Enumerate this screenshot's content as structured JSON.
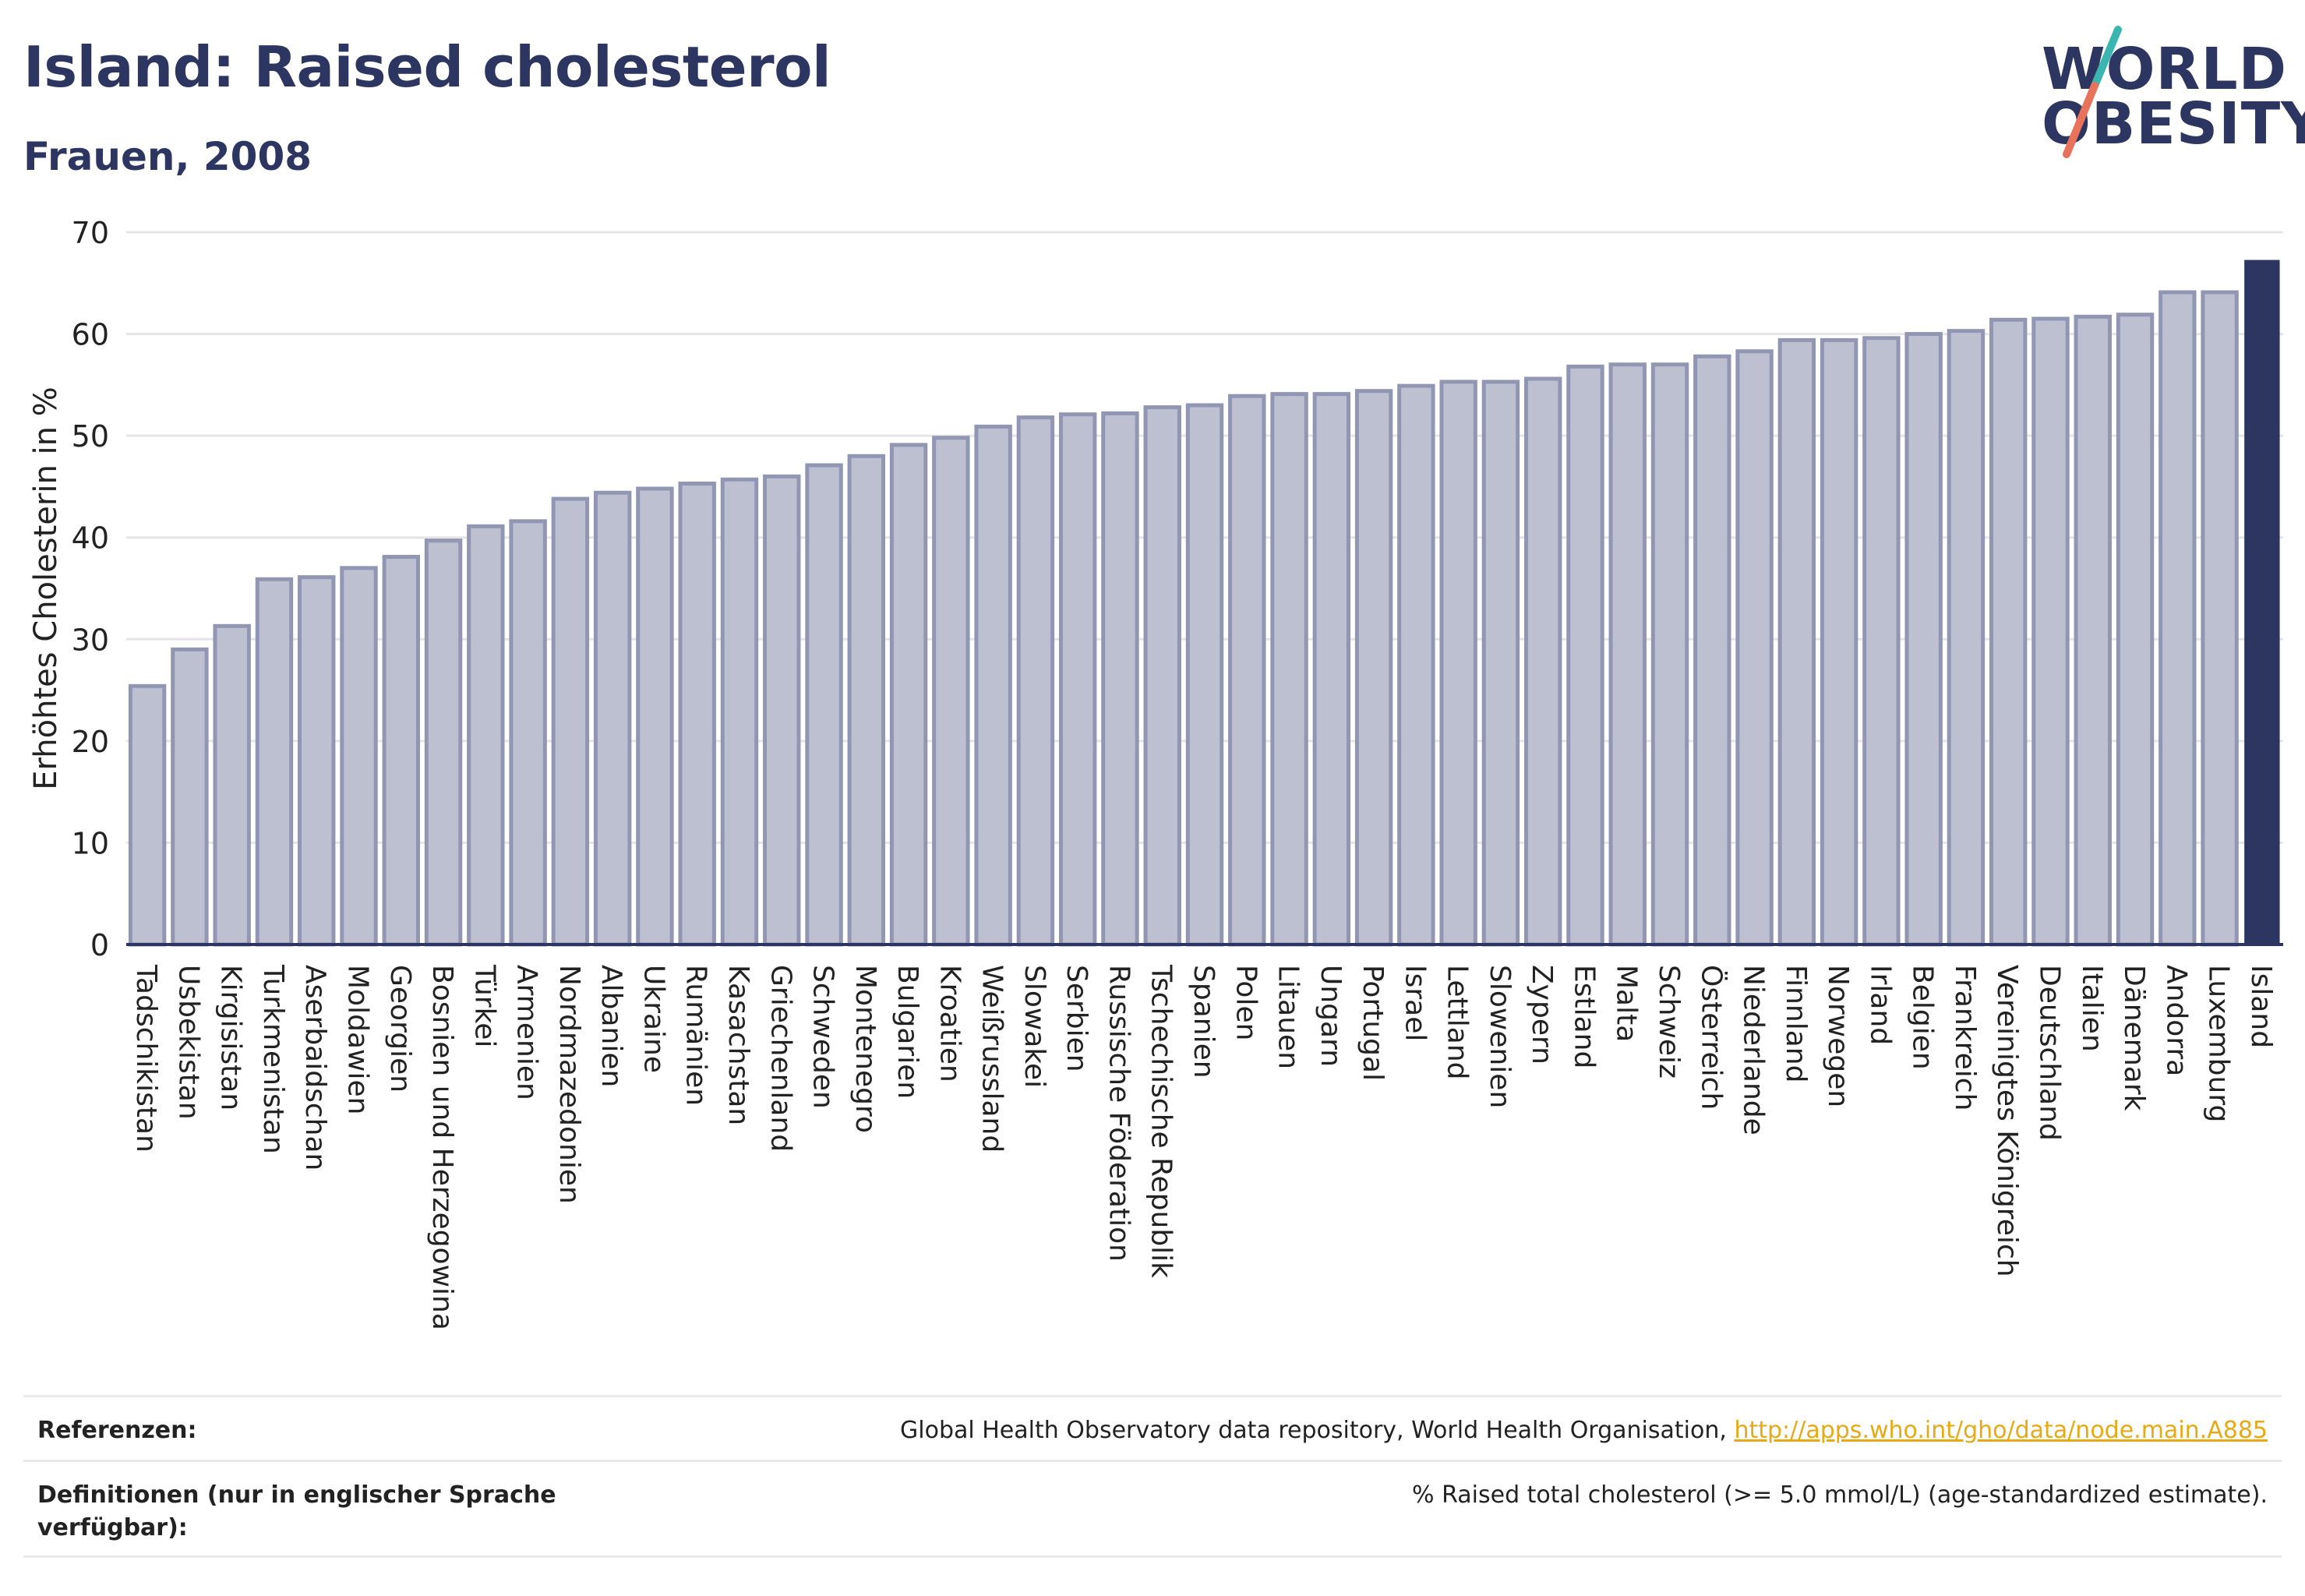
{
  "header": {
    "title": "Island: Raised cholesterol",
    "subtitle": "Frauen, 2008"
  },
  "logo": {
    "line1": "WORLD",
    "line2": "OBESITY",
    "colors": {
      "text": "#2d3561",
      "slash_top": "#3ab5b0",
      "slash_bottom": "#e8735a"
    }
  },
  "chart_data": {
    "type": "bar",
    "ylabel": "Erhöhtes Cholesterin in %",
    "xlabel": "",
    "ylim": [
      0,
      70
    ],
    "yticks": [
      0,
      10,
      20,
      30,
      40,
      50,
      60,
      70
    ],
    "grid": true,
    "highlight": "Island",
    "colors": {
      "bar": "#bdc0d0",
      "bar_stroke": "#9196b2",
      "highlight": "#2d3561",
      "axis": "#2d3561",
      "grid": "#e5e5e5"
    },
    "categories": [
      "Tadschikistan",
      "Usbekistan",
      "Kirgisistan",
      "Turkmenistan",
      "Aserbaidschan",
      "Moldawien",
      "Georgien",
      "Bosnien und Herzegowina",
      "Türkei",
      "Armenien",
      "Nordmazedonien",
      "Albanien",
      "Ukraine",
      "Rumänien",
      "Kasachstan",
      "Griechenland",
      "Schweden",
      "Montenegro",
      "Bulgarien",
      "Kroatien",
      "Weißrussland",
      "Slowakei",
      "Serbien",
      "Russische Föderation",
      "Tschechische Republik",
      "Spanien",
      "Polen",
      "Litauen",
      "Ungarn",
      "Portugal",
      "Israel",
      "Lettland",
      "Slowenien",
      "Zypern",
      "Estland",
      "Malta",
      "Schweiz",
      "Österreich",
      "Niederlande",
      "Finnland",
      "Norwegen",
      "Irland",
      "Belgien",
      "Frankreich",
      "Vereinigtes Königreich",
      "Deutschland",
      "Italien",
      "Dänemark",
      "Andorra",
      "Luxemburg",
      "Island"
    ],
    "values": [
      25.4,
      29.0,
      31.3,
      35.9,
      36.1,
      37.0,
      38.1,
      39.7,
      41.1,
      41.6,
      43.8,
      44.4,
      44.8,
      45.3,
      45.7,
      46.0,
      47.1,
      48.0,
      49.1,
      49.8,
      50.9,
      51.8,
      52.1,
      52.2,
      52.8,
      53.0,
      53.9,
      54.1,
      54.1,
      54.4,
      54.9,
      55.3,
      55.3,
      55.6,
      56.8,
      57.0,
      57.0,
      57.8,
      58.3,
      59.4,
      59.4,
      59.6,
      60.0,
      60.3,
      61.4,
      61.5,
      61.7,
      61.9,
      64.1,
      64.1,
      67.2
    ]
  },
  "footer": {
    "references_label": "Referenzen:",
    "references_text": "Global Health Observatory data repository, World Health Organisation, ",
    "references_link": "http://apps.who.int/gho/data/node.main.A885",
    "definitions_label": "Definitionen (nur in englischer Sprache verfügbar):",
    "definitions_text": "% Raised total cholesterol (>= 5.0 mmol/L) (age-standardized estimate)."
  }
}
